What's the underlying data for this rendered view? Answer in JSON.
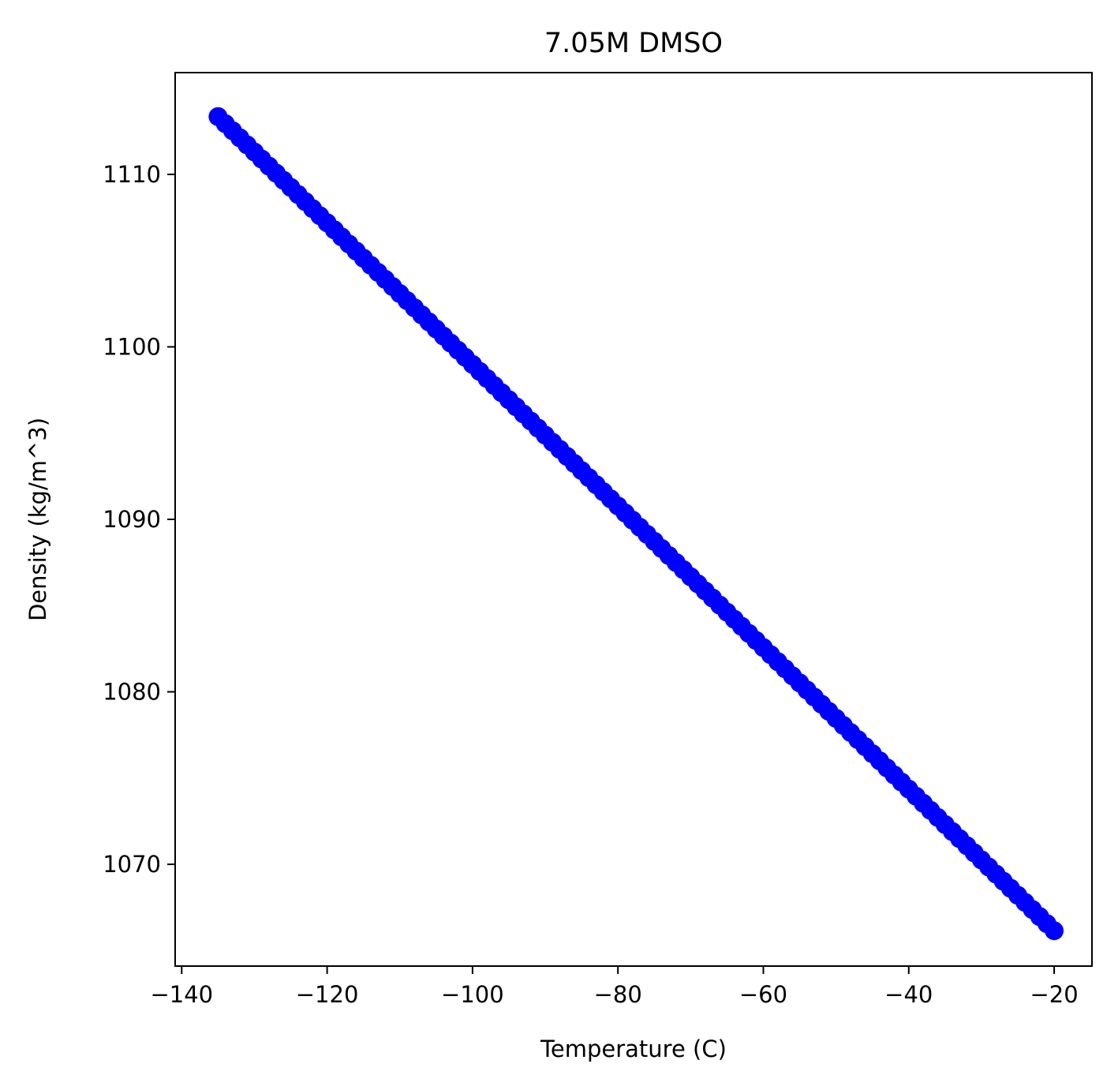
{
  "chart_data": {
    "type": "scatter",
    "title": "7.05M DMSO",
    "xlabel": "Temperature (C)",
    "ylabel": "Density (kg/m^3)",
    "xlim": [
      -140.9,
      -14.8
    ],
    "ylim": [
      1064.1,
      1115.9
    ],
    "xticks": [
      -140,
      -120,
      -100,
      -80,
      -60,
      -40,
      -20
    ],
    "xtick_labels": [
      "−140",
      "−120",
      "−100",
      "−80",
      "−60",
      "−40",
      "−20"
    ],
    "yticks": [
      1070,
      1080,
      1090,
      1100,
      1110
    ],
    "ytick_labels": [
      "1070",
      "1080",
      "1090",
      "1100",
      "1110"
    ],
    "grid": false,
    "legend": "none",
    "series": [
      {
        "color": "#0000ff",
        "marker": "circle",
        "x_start": -135,
        "x_end": -20,
        "x_step": 1,
        "y_start": 1113.35,
        "y_end": 1066.15
      }
    ]
  }
}
